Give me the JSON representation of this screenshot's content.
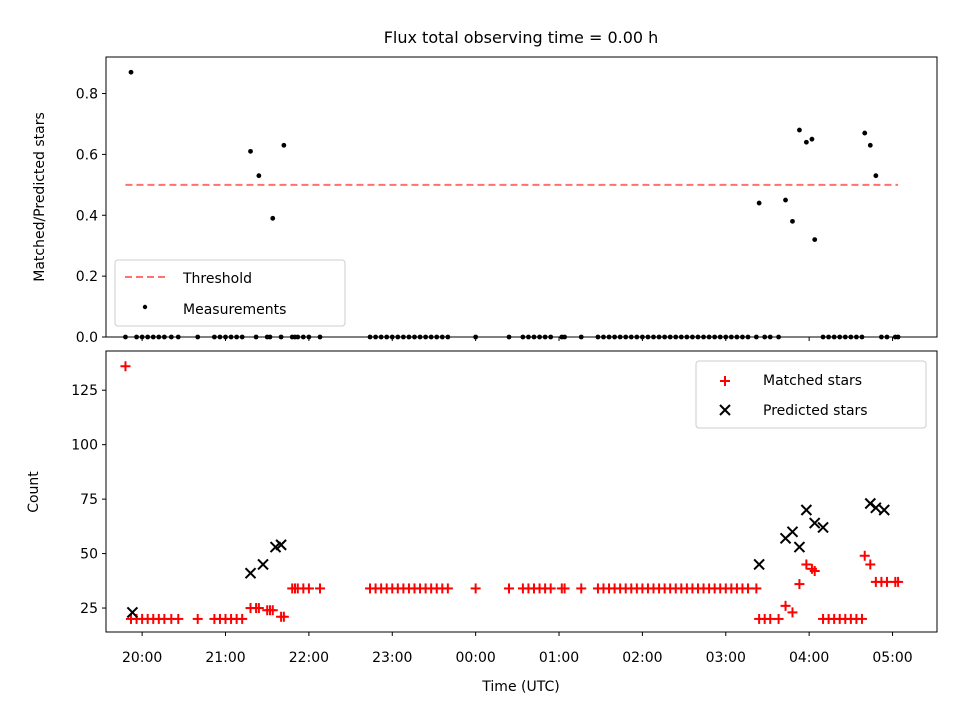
{
  "chart_data": [
    {
      "type": "scatter",
      "title": "Flux total observing time = 0.00 h",
      "xlabel": "",
      "ylabel": "Matched/Predicted stars",
      "xlim": [
        "19:34",
        "05:32"
      ],
      "ylim": [
        0,
        0.92
      ],
      "yticks": [
        0.0,
        0.2,
        0.4,
        0.6,
        0.8
      ],
      "ytick_labels": [
        "0.0",
        "0.2",
        "0.4",
        "0.6",
        "0.8"
      ],
      "legend_position": "lower-left",
      "threshold": {
        "name": "Threshold",
        "y": 0.5,
        "x_start": "19:48",
        "x_end": "05:04",
        "color": "#ff7070",
        "style": "dashed"
      },
      "series": [
        {
          "name": "Measurements",
          "color": "#000000",
          "marker": "dot",
          "x": [
            "19:48",
            "19:52",
            "19:56",
            "20:00",
            "20:04",
            "20:08",
            "20:12",
            "20:16",
            "20:21",
            "20:26",
            "20:40",
            "20:52",
            "20:56",
            "21:00",
            "21:04",
            "21:08",
            "21:12",
            "21:18",
            "21:22",
            "21:24",
            "21:30",
            "21:32",
            "21:34",
            "21:40",
            "21:42",
            "21:48",
            "21:50",
            "21:52",
            "21:56",
            "22:00",
            "22:08",
            "22:44",
            "22:48",
            "22:52",
            "22:56",
            "23:00",
            "23:04",
            "23:08",
            "23:12",
            "23:16",
            "23:20",
            "23:24",
            "23:28",
            "23:32",
            "23:36",
            "23:40",
            "00:00",
            "00:24",
            "00:34",
            "00:38",
            "00:42",
            "00:46",
            "00:50",
            "00:54",
            "01:02",
            "01:04",
            "01:16",
            "01:28",
            "01:32",
            "01:36",
            "01:40",
            "01:44",
            "01:48",
            "01:52",
            "01:56",
            "02:00",
            "02:04",
            "02:08",
            "02:12",
            "02:16",
            "02:20",
            "02:24",
            "02:28",
            "02:32",
            "02:36",
            "02:40",
            "02:44",
            "02:48",
            "02:52",
            "02:56",
            "03:00",
            "03:04",
            "03:08",
            "03:12",
            "03:16",
            "03:22",
            "03:24",
            "03:28",
            "03:32",
            "03:38",
            "03:43",
            "03:48",
            "03:53",
            "03:58",
            "04:02",
            "04:04",
            "04:10",
            "04:14",
            "04:18",
            "04:22",
            "04:26",
            "04:30",
            "04:34",
            "04:38",
            "04:40",
            "04:44",
            "04:48",
            "04:52",
            "04:56",
            "05:02",
            "05:04"
          ],
          "y": [
            0,
            0.87,
            0,
            0,
            0,
            0,
            0,
            0,
            0,
            0,
            0,
            0,
            0,
            0,
            0,
            0,
            0,
            0.61,
            0,
            0.53,
            0,
            0,
            0.39,
            0,
            0.63,
            0,
            0,
            0,
            0,
            0,
            0,
            0,
            0,
            0,
            0,
            0,
            0,
            0,
            0,
            0,
            0,
            0,
            0,
            0,
            0,
            0,
            0,
            0,
            0,
            0,
            0,
            0,
            0,
            0,
            0,
            0,
            0,
            0,
            0,
            0,
            0,
            0,
            0,
            0,
            0,
            0,
            0,
            0,
            0,
            0,
            0,
            0,
            0,
            0,
            0,
            0,
            0,
            0,
            0,
            0,
            0,
            0,
            0,
            0,
            0,
            0,
            0.44,
            0,
            0,
            0,
            0.45,
            0.38,
            0.68,
            0.64,
            0.65,
            0.32,
            0,
            0,
            0,
            0,
            0,
            0,
            0,
            0,
            0.67,
            0.63,
            0.53,
            0,
            0,
            0,
            0
          ]
        }
      ]
    },
    {
      "type": "scatter",
      "title": "",
      "xlabel": "Time (UTC)",
      "ylabel": "Count",
      "xlim": [
        "19:34",
        "05:32"
      ],
      "ylim": [
        14,
        143
      ],
      "yticks": [
        25,
        50,
        75,
        100,
        125
      ],
      "ytick_labels": [
        "25",
        "50",
        "75",
        "100",
        "125"
      ],
      "xticks": [
        "20:00",
        "21:00",
        "22:00",
        "23:00",
        "00:00",
        "01:00",
        "02:00",
        "03:00",
        "04:00",
        "05:00"
      ],
      "xtick_labels": [
        "20:00",
        "21:00",
        "22:00",
        "23:00",
        "00:00",
        "01:00",
        "02:00",
        "03:00",
        "04:00",
        "05:00"
      ],
      "legend_position": "upper-right",
      "series": [
        {
          "name": "Matched stars",
          "color": "#ff0000",
          "marker": "plus",
          "x": [
            "19:48",
            "19:52",
            "19:56",
            "20:00",
            "20:04",
            "20:08",
            "20:12",
            "20:16",
            "20:21",
            "20:26",
            "20:40",
            "20:52",
            "20:56",
            "21:00",
            "21:04",
            "21:08",
            "21:12",
            "21:18",
            "21:22",
            "21:24",
            "21:30",
            "21:32",
            "21:34",
            "21:40",
            "21:42",
            "21:48",
            "21:50",
            "21:52",
            "21:56",
            "22:00",
            "22:08",
            "22:44",
            "22:48",
            "22:52",
            "22:56",
            "23:00",
            "23:04",
            "23:08",
            "23:12",
            "23:16",
            "23:20",
            "23:24",
            "23:28",
            "23:32",
            "23:36",
            "23:40",
            "00:00",
            "00:24",
            "00:34",
            "00:38",
            "00:42",
            "00:46",
            "00:50",
            "00:54",
            "01:02",
            "01:04",
            "01:16",
            "01:28",
            "01:32",
            "01:36",
            "01:40",
            "01:44",
            "01:48",
            "01:52",
            "01:56",
            "02:00",
            "02:04",
            "02:08",
            "02:12",
            "02:16",
            "02:20",
            "02:24",
            "02:28",
            "02:32",
            "02:36",
            "02:40",
            "02:44",
            "02:48",
            "02:52",
            "02:56",
            "03:00",
            "03:04",
            "03:08",
            "03:12",
            "03:16",
            "03:22",
            "03:24",
            "03:28",
            "03:32",
            "03:38",
            "03:43",
            "03:48",
            "03:53",
            "03:58",
            "04:02",
            "04:04",
            "04:10",
            "04:14",
            "04:18",
            "04:22",
            "04:26",
            "04:30",
            "04:34",
            "04:38",
            "04:40",
            "04:44",
            "04:48",
            "04:52",
            "04:56",
            "05:02",
            "05:04"
          ],
          "y": [
            136,
            20,
            20,
            20,
            20,
            20,
            20,
            20,
            20,
            20,
            20,
            20,
            20,
            20,
            20,
            20,
            20,
            25,
            25,
            25,
            24,
            24,
            24,
            21,
            21,
            34,
            34,
            34,
            34,
            34,
            34,
            34,
            34,
            34,
            34,
            34,
            34,
            34,
            34,
            34,
            34,
            34,
            34,
            34,
            34,
            34,
            34,
            34,
            34,
            34,
            34,
            34,
            34,
            34,
            34,
            34,
            34,
            34,
            34,
            34,
            34,
            34,
            34,
            34,
            34,
            34,
            34,
            34,
            34,
            34,
            34,
            34,
            34,
            34,
            34,
            34,
            34,
            34,
            34,
            34,
            34,
            34,
            34,
            34,
            34,
            34,
            20,
            20,
            20,
            20,
            26,
            23,
            36,
            45,
            43,
            42,
            20,
            20,
            20,
            20,
            20,
            20,
            20,
            20,
            49,
            45,
            37,
            37,
            37,
            37,
            37
          ]
        },
        {
          "name": "Predicted stars",
          "color": "#000000",
          "marker": "x",
          "x": [
            "19:53",
            "21:18",
            "21:27",
            "21:36",
            "21:40",
            "03:24",
            "03:43",
            "03:48",
            "03:53",
            "03:58",
            "04:04",
            "04:10",
            "04:44",
            "04:48",
            "04:54"
          ],
          "y": [
            23,
            41,
            45,
            53,
            54,
            45,
            57,
            60,
            53,
            70,
            64,
            62,
            73,
            71,
            70
          ]
        }
      ]
    }
  ]
}
